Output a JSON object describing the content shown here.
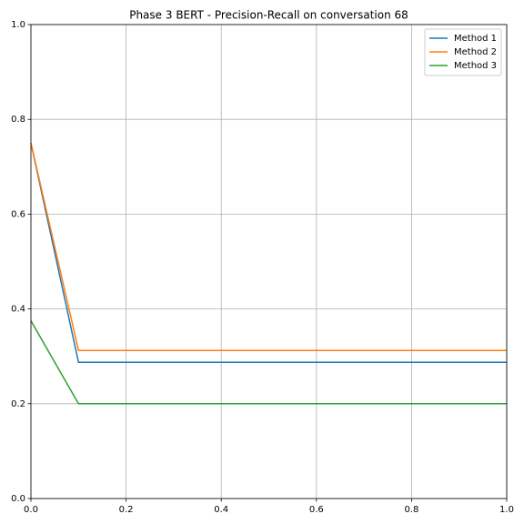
{
  "chart_data": {
    "type": "line",
    "title": "Phase 3 BERT - Precision-Recall on conversation 68",
    "x": [
      0,
      0.1,
      0.2,
      0.3,
      0.4,
      0.5,
      0.6,
      0.7,
      0.8,
      0.9,
      1
    ],
    "series": [
      {
        "name": "Method 1",
        "color": "#1f77b4",
        "values": [
          0.75,
          0.2875,
          0.2875,
          0.2875,
          0.2875,
          0.2875,
          0.2875,
          0.2875,
          0.2875,
          0.2875,
          0.2875
        ]
      },
      {
        "name": "Method 2",
        "color": "#ff7f0e",
        "values": [
          0.75,
          0.3125,
          0.3125,
          0.3125,
          0.3125,
          0.3125,
          0.3125,
          0.3125,
          0.3125,
          0.3125,
          0.3125
        ]
      },
      {
        "name": "Method 3",
        "color": "#2ca02c",
        "values": [
          0.375,
          0.2,
          0.2,
          0.2,
          0.2,
          0.2,
          0.2,
          0.2,
          0.2,
          0.2,
          0.2
        ]
      }
    ],
    "xlim": [
      0,
      1
    ],
    "xticks": [
      {
        "value": 0,
        "label": "0.0"
      },
      0.2,
      0.4,
      0.6,
      0.8,
      {
        "value": 1,
        "label": "1.0"
      }
    ],
    "ylim": [
      0,
      1
    ],
    "yticks": [
      {
        "value": 0,
        "label": "0.0"
      },
      0.2,
      0.4,
      0.6,
      0.8,
      {
        "value": 1,
        "label": "1.0"
      }
    ],
    "grid": true,
    "legend": "upper right"
  }
}
